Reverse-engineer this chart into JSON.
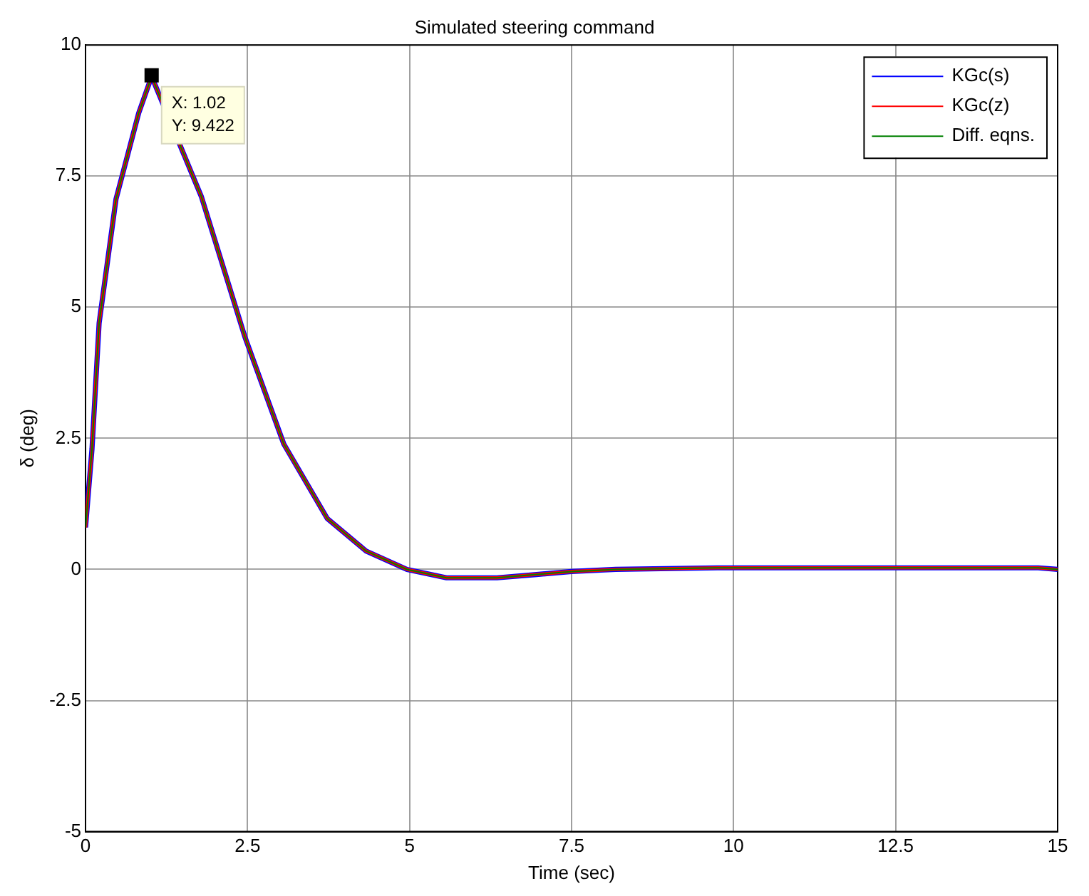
{
  "chart_data": {
    "type": "line",
    "title": "Simulated steering command",
    "xlabel": "Time (sec)",
    "ylabel": "δ (deg)",
    "x": [
      0,
      0.1,
      0.21,
      0.47,
      0.82,
      1.02,
      1.79,
      2.46,
      3.06,
      3.73,
      4.33,
      4.96,
      5.57,
      6.35,
      6.93,
      7.5,
      8.18,
      9.75,
      14.7,
      15
    ],
    "series": [
      {
        "name": "KGc(s)",
        "color": "#0000ff",
        "values": [
          0.8,
          2.3,
          4.7,
          7.06,
          8.7,
          9.4,
          7.1,
          4.43,
          2.39,
          0.97,
          0.35,
          0,
          -0.16,
          -0.16,
          -0.1,
          -0.04,
          0,
          0.03,
          0.03,
          0
        ]
      },
      {
        "name": "KGc(z)",
        "color": "#ff0000",
        "values": [
          0.8,
          2.3,
          4.7,
          7.06,
          8.7,
          9.4,
          7.1,
          4.43,
          2.39,
          0.97,
          0.35,
          0,
          -0.16,
          -0.16,
          -0.1,
          -0.04,
          0,
          0.03,
          0.03,
          0
        ]
      },
      {
        "name": "Diff. eqns.",
        "color": "#008000",
        "values": [
          0.8,
          2.3,
          4.7,
          7.06,
          8.7,
          9.4,
          7.1,
          4.43,
          2.39,
          0.97,
          0.35,
          0,
          -0.16,
          -0.16,
          -0.1,
          -0.04,
          0,
          0.03,
          0.03,
          0
        ]
      }
    ],
    "xlim": [
      0,
      15
    ],
    "xticks": [
      0,
      2.5,
      5,
      7.5,
      10,
      12.5,
      15
    ],
    "ylim": [
      -5,
      10
    ],
    "yticks": [
      -5,
      -2.5,
      0,
      2.5,
      5,
      7.5,
      10
    ],
    "grid": true,
    "legend": "top right",
    "line_style": "solid",
    "marker": "none",
    "annotations": [
      {
        "text": "X: 1.02\nY: 9.422",
        "x": 1.02,
        "y": 9.422
      }
    ]
  }
}
